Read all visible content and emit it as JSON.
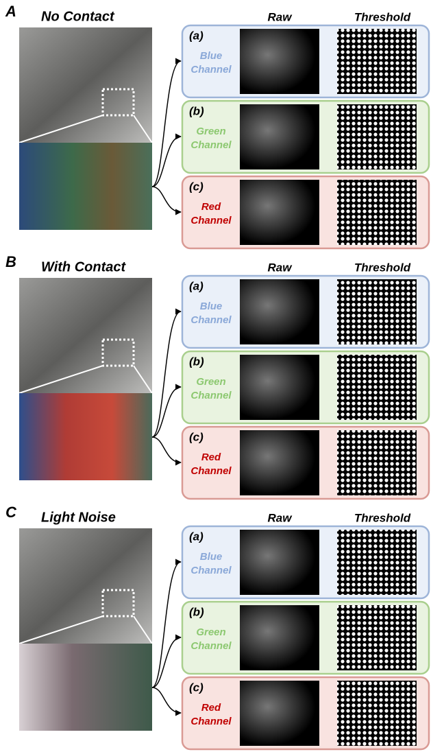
{
  "sections": [
    {
      "letter": "A",
      "title": "No Contact",
      "columns": [
        "Raw",
        "Threshold"
      ],
      "channels": [
        {
          "tag": "(a)",
          "name": [
            "Blue",
            "Channel"
          ]
        },
        {
          "tag": "(b)",
          "name": [
            "Green",
            "Channel"
          ]
        },
        {
          "tag": "(c)",
          "name": [
            "Red",
            "Channel"
          ]
        }
      ]
    },
    {
      "letter": "B",
      "title": "With Contact",
      "columns": [
        "Raw",
        "Threshold"
      ],
      "channels": [
        {
          "tag": "(a)",
          "name": [
            "Blue",
            "Channel"
          ]
        },
        {
          "tag": "(b)",
          "name": [
            "Green",
            "Channel"
          ]
        },
        {
          "tag": "(c)",
          "name": [
            "Red",
            "Channel"
          ]
        }
      ]
    },
    {
      "letter": "C",
      "title": "Light Noise",
      "columns": [
        "Raw",
        "Threshold"
      ],
      "channels": [
        {
          "tag": "(a)",
          "name": [
            "Blue",
            "Channel"
          ]
        },
        {
          "tag": "(b)",
          "name": [
            "Green",
            "Channel"
          ]
        },
        {
          "tag": "(c)",
          "name": [
            "Red",
            "Channel"
          ]
        }
      ]
    }
  ]
}
